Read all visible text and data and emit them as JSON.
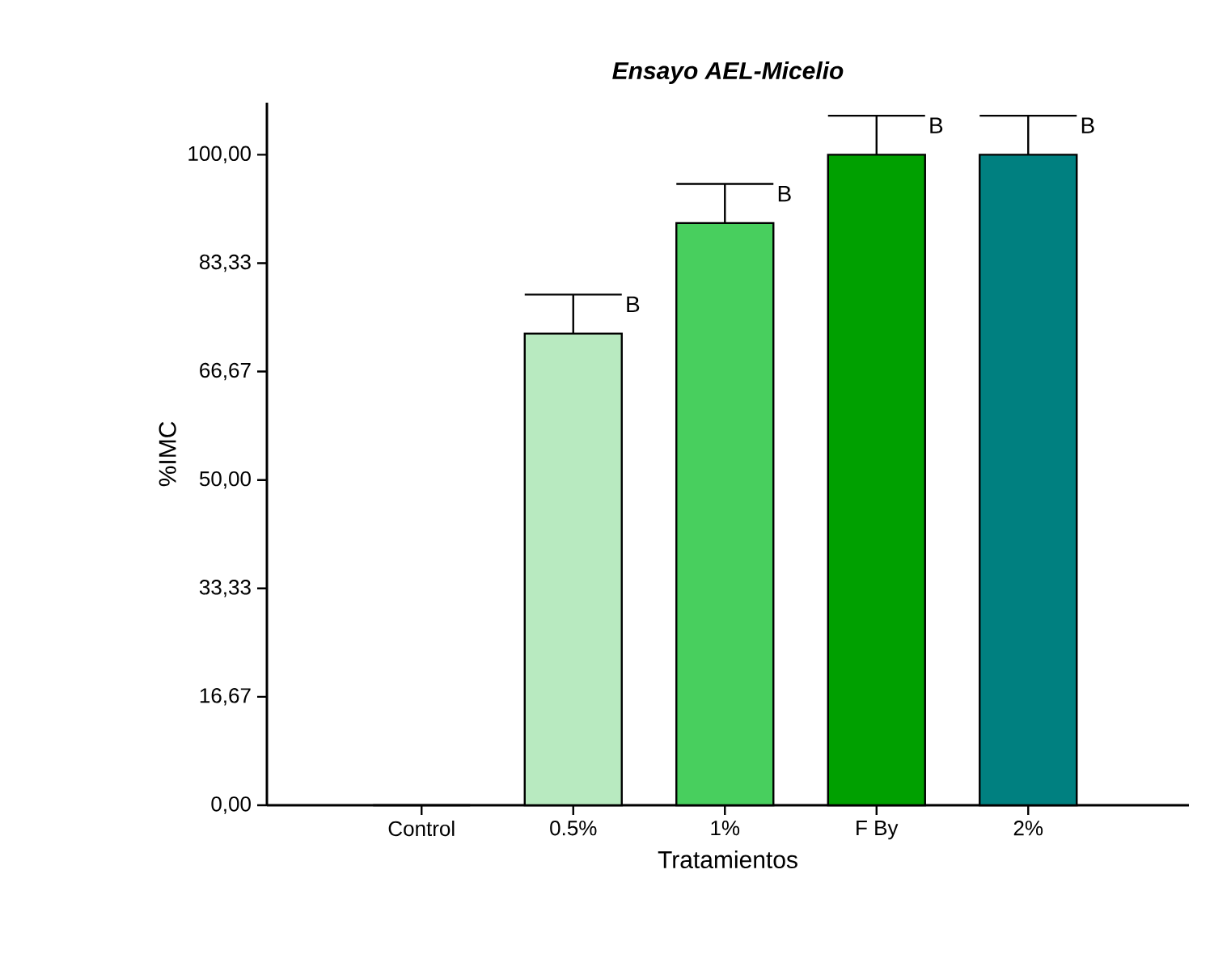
{
  "chart_data": {
    "type": "bar",
    "title": "Ensayo AEL-Micelio",
    "xlabel": "Tratamientos",
    "ylabel": "%IMC",
    "categories": [
      "Control",
      "0.5%",
      "1%",
      "F By",
      "2%"
    ],
    "values": [
      0,
      72.5,
      89.5,
      100,
      100
    ],
    "colors": [
      "#ffffff",
      "#b8eac0",
      "#48cf5e",
      "#00a000",
      "#008080"
    ],
    "errors": [
      null,
      [
        72.5,
        78.5
      ],
      [
        89.5,
        95.5
      ],
      [
        100,
        106
      ],
      [
        100,
        106
      ]
    ],
    "ylim": [
      0,
      108
    ],
    "yticks": [
      {
        "value": 0,
        "label": "0,00"
      },
      {
        "value": 16.67,
        "label": "16,67"
      },
      {
        "value": 33.33,
        "label": "33,33"
      },
      {
        "value": 50,
        "label": "50,00"
      },
      {
        "value": 66.67,
        "label": "66,67"
      },
      {
        "value": 83.33,
        "label": "83,33"
      },
      {
        "value": 100,
        "label": "100,00"
      }
    ],
    "annotations": [
      {
        "text": "B",
        "x": "0.5%",
        "y": 78.5
      },
      {
        "text": "B",
        "x": "1%",
        "y": 95.5
      },
      {
        "text": "B",
        "x": "F By",
        "y": 106
      },
      {
        "text": "B",
        "x": "2%",
        "y": 106
      }
    ],
    "grid": false
  }
}
